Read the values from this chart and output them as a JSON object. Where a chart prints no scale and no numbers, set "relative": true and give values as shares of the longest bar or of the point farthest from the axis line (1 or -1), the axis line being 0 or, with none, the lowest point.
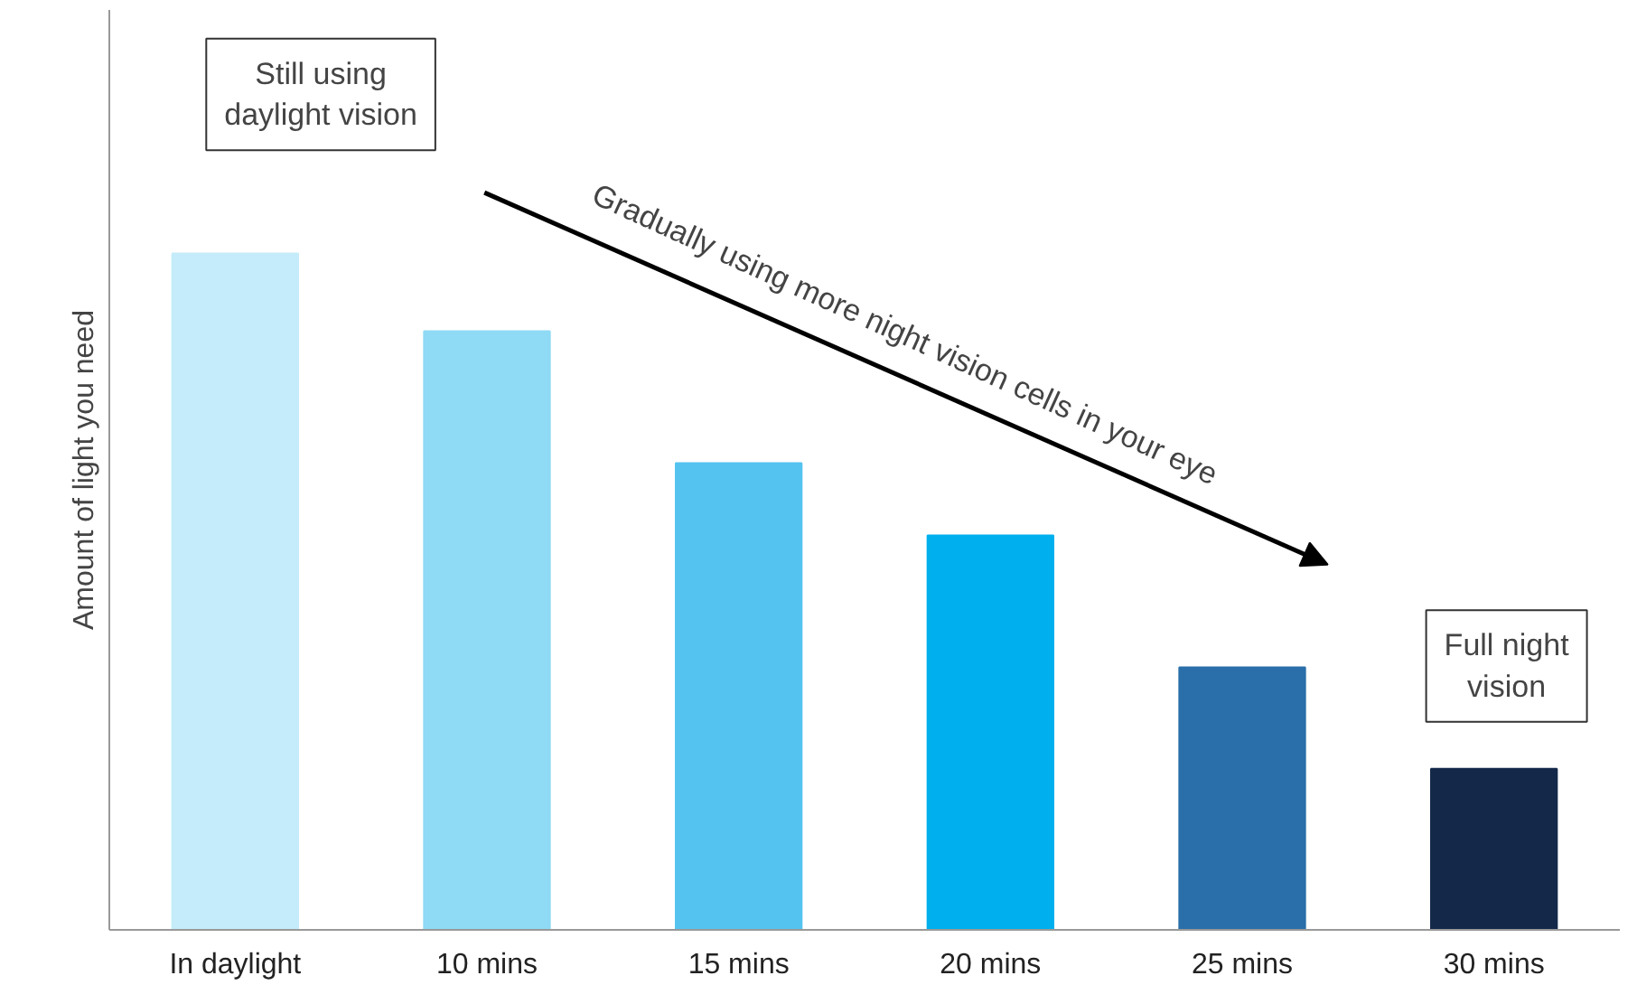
{
  "chart_data": {
    "type": "bar",
    "relative": true,
    "ylabel": "Amount of light you need",
    "categories": [
      "In daylight",
      "10 mins",
      "15 mins",
      "20 mins",
      "25 mins",
      "30 mins"
    ],
    "values": [
      1,
      0.885,
      0.69,
      0.583,
      0.388,
      0.238
    ],
    "colors": [
      "#c4ecfa",
      "#8fdaf5",
      "#55c3f0",
      "#00b0ee",
      "#2a6faa",
      "#14294a"
    ],
    "annotations": [
      "Still using daylight vision",
      "Gradually using more night vision cells in your eye",
      "Full night vision"
    ],
    "grid": false,
    "tick_labels": "x"
  }
}
